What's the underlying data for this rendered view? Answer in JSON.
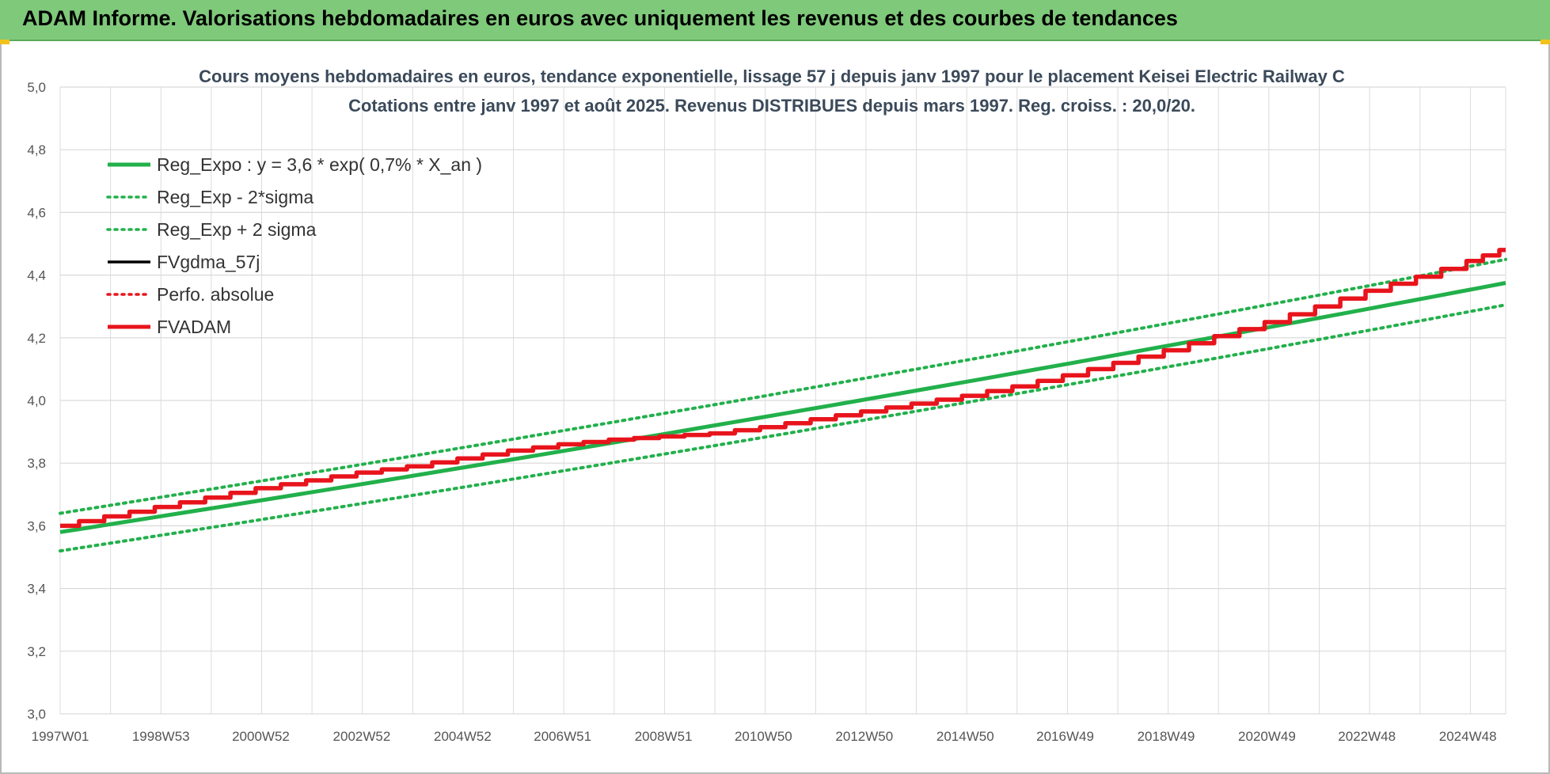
{
  "banner": {
    "title": "ADAM Informe. Valorisations hebdomadaires en euros avec uniquement les revenus et des courbes de tendances"
  },
  "chart_data": {
    "type": "line",
    "title": "Cours moyens hebdomadaires en euros, tendance exponentielle, lissage 57 j depuis janv 1997 pour le placement Keisei Electric Railway C",
    "subtitle": "Cotations entre janv 1997 et août 2025. Revenus DISTRIBUES depuis mars 1997. Reg. croiss. : 20,0/20.",
    "xlabel": "",
    "ylabel": "",
    "ylim": [
      3.0,
      5.0
    ],
    "y_ticks": [
      "3,0",
      "3,2",
      "3,4",
      "3,6",
      "3,8",
      "4,0",
      "4,2",
      "4,4",
      "4,6",
      "4,8",
      "5,0"
    ],
    "x_ticks": [
      "1997W01",
      "1998W53",
      "2000W52",
      "2002W52",
      "2004W52",
      "2006W51",
      "2008W51",
      "2010W50",
      "2012W50",
      "2014W50",
      "2016W49",
      "2018W49",
      "2020W49",
      "2022W48",
      "2024W48"
    ],
    "x_range": [
      "1997W01",
      "2025W35"
    ],
    "grid": true,
    "legend_position": "top-left",
    "series": [
      {
        "name": "Reg_Expo : y = 3,6 * exp( 0,7% *  X_an )",
        "color": "#22b04b",
        "style": "solid",
        "x": [
          "1997W01",
          "2025W35"
        ],
        "values": [
          3.58,
          4.375
        ]
      },
      {
        "name": "Reg_Exp - 2*sigma",
        "color": "#22b04b",
        "style": "dotted",
        "x": [
          "1997W01",
          "2025W35"
        ],
        "values": [
          3.52,
          4.305
        ]
      },
      {
        "name": "Reg_Exp + 2 sigma",
        "color": "#22b04b",
        "style": "dotted",
        "x": [
          "1997W01",
          "2025W35"
        ],
        "values": [
          3.64,
          4.45
        ]
      },
      {
        "name": "FVgdma_57j",
        "color": "#000000",
        "style": "solid",
        "x": [
          "1997W01",
          "1998W01",
          "1999W01",
          "2000W01",
          "2001W01",
          "2002W01",
          "2003W01",
          "2004W01",
          "2005W01",
          "2006W01",
          "2007W01",
          "2008W01",
          "2009W01",
          "2010W01",
          "2011W01",
          "2012W01",
          "2013W01",
          "2014W01",
          "2015W01",
          "2016W01",
          "2017W01",
          "2018W01",
          "2019W01",
          "2020W01",
          "2021W01",
          "2022W01",
          "2023W01",
          "2024W01",
          "2025W01",
          "2025W35"
        ],
        "values": [
          3.6,
          3.63,
          3.66,
          3.69,
          3.72,
          3.745,
          3.77,
          3.79,
          3.815,
          3.84,
          3.86,
          3.875,
          3.885,
          3.895,
          3.915,
          3.94,
          3.965,
          3.99,
          4.015,
          4.045,
          4.08,
          4.12,
          4.16,
          4.205,
          4.25,
          4.3,
          4.35,
          4.395,
          4.445,
          4.48
        ]
      },
      {
        "name": "Perfo. absolue",
        "color": "#e8141c",
        "style": "dotted",
        "x": [],
        "values": []
      },
      {
        "name": "FVADAM",
        "color": "#e8141c",
        "style": "solid-thick",
        "x": [
          "1997W01",
          "1998W01",
          "1999W01",
          "2000W01",
          "2001W01",
          "2002W01",
          "2003W01",
          "2004W01",
          "2005W01",
          "2006W01",
          "2007W01",
          "2008W01",
          "2009W01",
          "2010W01",
          "2011W01",
          "2012W01",
          "2013W01",
          "2014W01",
          "2015W01",
          "2016W01",
          "2017W01",
          "2018W01",
          "2019W01",
          "2020W01",
          "2021W01",
          "2022W01",
          "2023W01",
          "2024W01",
          "2025W01",
          "2025W35"
        ],
        "values": [
          3.6,
          3.63,
          3.66,
          3.69,
          3.72,
          3.745,
          3.77,
          3.79,
          3.815,
          3.84,
          3.86,
          3.875,
          3.885,
          3.895,
          3.915,
          3.94,
          3.965,
          3.99,
          4.015,
          4.045,
          4.08,
          4.12,
          4.16,
          4.205,
          4.25,
          4.3,
          4.35,
          4.395,
          4.445,
          4.48
        ]
      }
    ]
  }
}
